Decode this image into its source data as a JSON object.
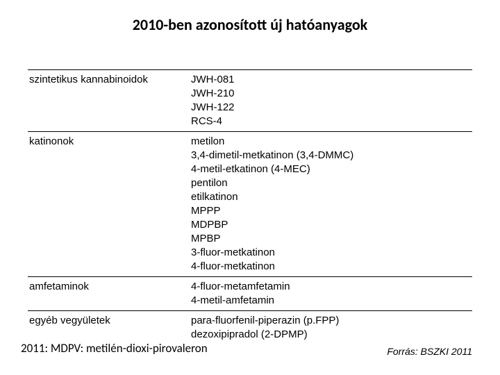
{
  "title": "2010-ben azonosított új hatóanyagok",
  "title_fontsize": 22,
  "table": {
    "fontsize": 15,
    "line_height": 20,
    "text_color": "#000000",
    "categories": [
      {
        "label": "szintetikus kannabinoidok",
        "items": [
          "JWH-081",
          "JWH-210",
          "JWH-122",
          "RCS-4"
        ]
      },
      {
        "label": "katinonok",
        "items": [
          "metilon",
          "3,4-dimetil-metkatinon (3,4-DMMC)",
          "4-metil-etkatinon (4-MEC)",
          "pentilon",
          "etilkatinon",
          "MPPP",
          "MDPBP",
          "MPBP",
          "3-fluor-metkatinon",
          "4-fluor-metkatinon"
        ]
      },
      {
        "label": "amfetaminok",
        "items": [
          "4-fluor-metamfetamin",
          "4-metil-amfetamin"
        ]
      },
      {
        "label": "egyéb vegyületek",
        "items": [
          "para-fluorfenil-piperazin (p.FPP)",
          "dezoxipipradol (2-DPMP)"
        ]
      }
    ]
  },
  "source": {
    "text": "Forrás: BSZKI 2011",
    "fontsize": 14
  },
  "footnote": {
    "text": "2011: MDPV: metilén-dioxi-pirovaleron",
    "fontsize": 17
  }
}
